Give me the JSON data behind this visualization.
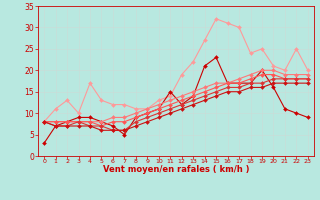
{
  "xlabel": "Vent moyen/en rafales ( km/h )",
  "x": [
    0,
    1,
    2,
    3,
    4,
    5,
    6,
    7,
    8,
    9,
    10,
    11,
    12,
    13,
    14,
    15,
    16,
    17,
    18,
    19,
    20,
    21,
    22,
    23
  ],
  "series": [
    {
      "color": "#ff9999",
      "lw": 0.8,
      "marker": "D",
      "ms": 2.0,
      "values": [
        8,
        11,
        13,
        10,
        17,
        13,
        12,
        12,
        11,
        11,
        13,
        14,
        19,
        22,
        27,
        32,
        31,
        30,
        24,
        25,
        21,
        20,
        25,
        20
      ]
    },
    {
      "color": "#cc0000",
      "lw": 0.8,
      "marker": "D",
      "ms": 2.0,
      "values": [
        3,
        7,
        8,
        9,
        9,
        8,
        7,
        5,
        9,
        10,
        11,
        15,
        12,
        14,
        21,
        23,
        17,
        17,
        17,
        20,
        16,
        11,
        10,
        9
      ]
    },
    {
      "color": "#ff7777",
      "lw": 0.8,
      "marker": "D",
      "ms": 2.0,
      "values": [
        8,
        8,
        8,
        8,
        8,
        8,
        9,
        9,
        10,
        11,
        12,
        13,
        14,
        15,
        16,
        17,
        17,
        18,
        19,
        20,
        20,
        19,
        19,
        19
      ]
    },
    {
      "color": "#ff5555",
      "lw": 0.8,
      "marker": "D",
      "ms": 2.0,
      "values": [
        8,
        8,
        8,
        8,
        8,
        7,
        8,
        8,
        9,
        10,
        11,
        12,
        13,
        14,
        15,
        16,
        17,
        17,
        18,
        19,
        19,
        18,
        18,
        18
      ]
    },
    {
      "color": "#dd3333",
      "lw": 0.8,
      "marker": "D",
      "ms": 2.0,
      "values": [
        8,
        7,
        7,
        8,
        7,
        7,
        6,
        6,
        8,
        9,
        10,
        11,
        12,
        13,
        14,
        15,
        16,
        16,
        17,
        17,
        18,
        18,
        18,
        18
      ]
    },
    {
      "color": "#cc1111",
      "lw": 0.8,
      "marker": "D",
      "ms": 2.0,
      "values": [
        8,
        7,
        7,
        7,
        7,
        6,
        6,
        6,
        7,
        8,
        9,
        10,
        11,
        12,
        13,
        14,
        15,
        15,
        16,
        16,
        17,
        17,
        17,
        17
      ]
    }
  ],
  "xlim": [
    -0.5,
    23.5
  ],
  "ylim": [
    0,
    35
  ],
  "yticks": [
    0,
    5,
    10,
    15,
    20,
    25,
    30,
    35
  ],
  "xticks": [
    0,
    1,
    2,
    3,
    4,
    5,
    6,
    7,
    8,
    9,
    10,
    11,
    12,
    13,
    14,
    15,
    16,
    17,
    18,
    19,
    20,
    21,
    22,
    23
  ],
  "bg_color": "#b8e8e0",
  "grid_color": "#c8ddd8",
  "tick_color": "#cc0000",
  "label_color": "#cc0000"
}
